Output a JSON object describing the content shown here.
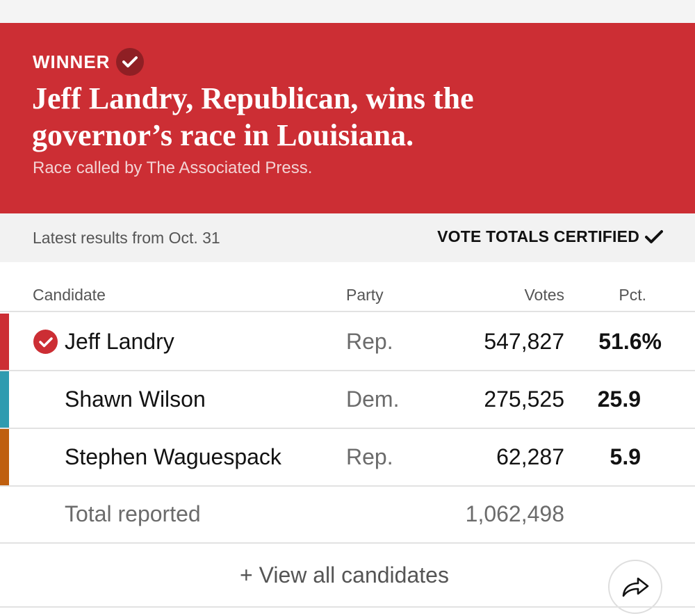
{
  "banner": {
    "winner_label": "WINNER",
    "headline": "Jeff Landry, Republican, wins the governor’s race in Louisiana.",
    "called_by": "Race called by The Associated Press.",
    "background_color": "#cc2e34"
  },
  "status": {
    "latest_results": "Latest results from Oct. 31",
    "certified_label": "VOTE TOTALS CERTIFIED"
  },
  "table": {
    "headers": {
      "candidate": "Candidate",
      "party": "Party",
      "votes": "Votes",
      "pct": "Pct."
    },
    "rows": [
      {
        "name": "Jeff Landry",
        "party": "Rep.",
        "votes": "547,827",
        "pct": "51.6%",
        "winner": true,
        "color": "#cc2e34"
      },
      {
        "name": "Shawn Wilson",
        "party": "Dem.",
        "votes": "275,525",
        "pct": "25.9",
        "winner": false,
        "color": "#2f9bb0"
      },
      {
        "name": "Stephen Waguespack",
        "party": "Rep.",
        "votes": "62,287",
        "pct": "5.9",
        "winner": false,
        "color": "#bf5f0f"
      }
    ],
    "total": {
      "label": "Total reported",
      "votes": "1,062,498"
    }
  },
  "footer": {
    "view_all": "+ View all candidates",
    "share_icon": "share-arrow-icon"
  }
}
